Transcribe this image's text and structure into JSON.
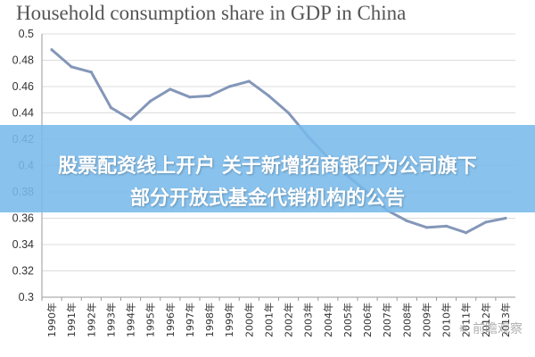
{
  "chart_data": {
    "type": "line",
    "title": "Household consumption share in GDP in China",
    "xlabel": "",
    "ylabel": "",
    "ylim": [
      0.3,
      0.5
    ],
    "yticks": [
      "0.5",
      "0.48",
      "0.46",
      "0.44",
      "0.42",
      "0.4",
      "0.38",
      "0.36",
      "0.34",
      "0.32",
      "0.3"
    ],
    "categories": [
      "1990年",
      "1991年",
      "1992年",
      "1993年",
      "1994年",
      "1995年",
      "1996年",
      "1997年",
      "1998年",
      "1999年",
      "2000年",
      "2001年",
      "2002年",
      "2003年",
      "2004年",
      "2005年",
      "2006年",
      "2007年",
      "2008年",
      "2009年",
      "2010年",
      "2011年",
      "2012年",
      "2013年"
    ],
    "series": [
      {
        "color": "#8497b9",
        "values": [
          0.488,
          0.475,
          0.471,
          0.444,
          0.435,
          0.449,
          0.458,
          0.452,
          0.453,
          0.46,
          0.464,
          0.453,
          0.44,
          0.422,
          0.406,
          0.392,
          0.38,
          0.366,
          0.358,
          0.353,
          0.354,
          0.349,
          0.357,
          0.36
        ]
      }
    ],
    "grid": "horizontal",
    "legend": "none"
  },
  "overlay": {
    "line1": "股票配资线上开户 关于新增招商银行为公司旗下",
    "line2": "部分开放式基金代销机构的公告",
    "color": "#78b9eb"
  },
  "watermark": "前瞻观察",
  "watermark_icon": "chat-bubble-icon"
}
